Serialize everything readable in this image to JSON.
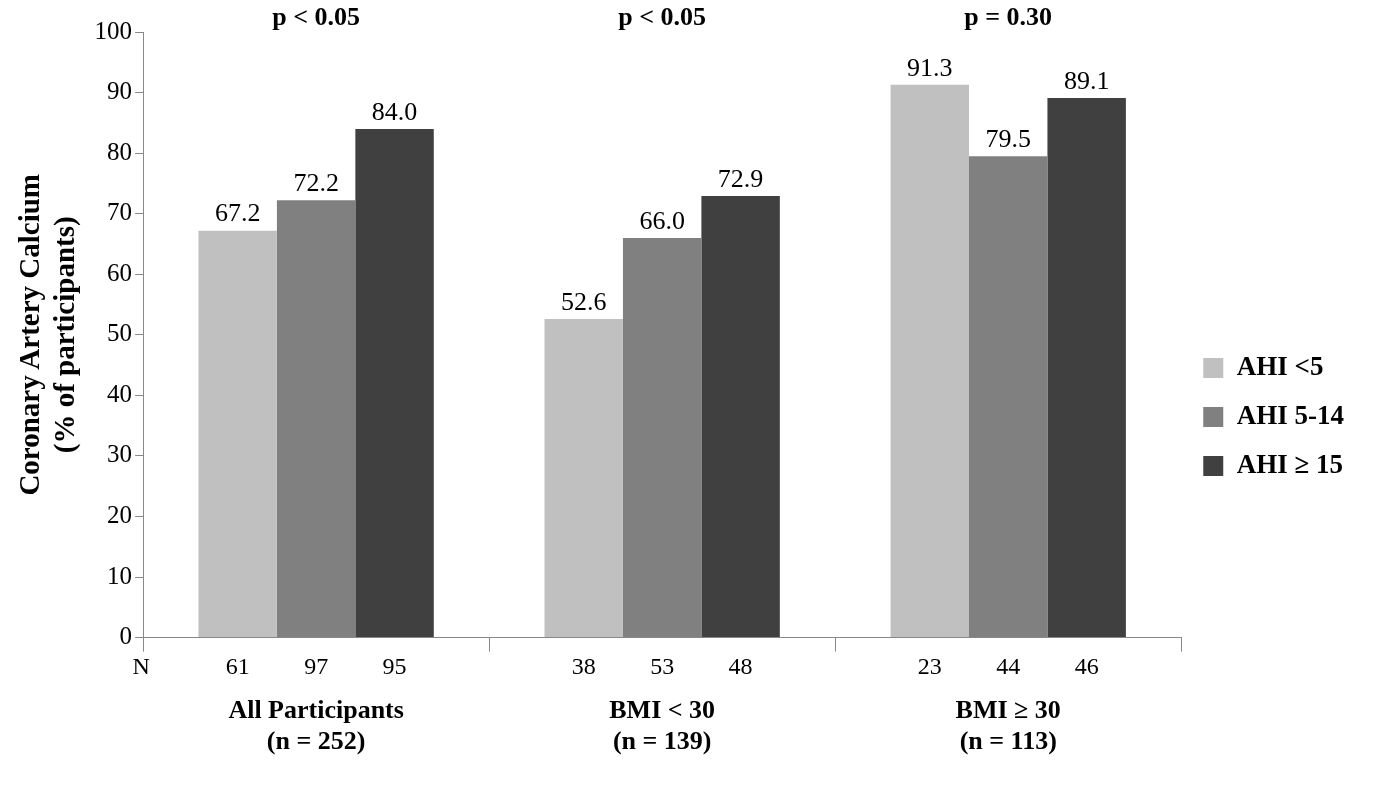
{
  "chart_data": {
    "type": "bar",
    "ylabel": "Coronary Artery Calcium\n(% of participants)",
    "categories": [
      "All Participants\n(n = 252)",
      "BMI < 30\n(n = 139)",
      "BMI ≥ 30\n(n = 113)"
    ],
    "series": [
      {
        "name": "AHI <5",
        "color": "#c0c0c0",
        "values": [
          67.2,
          52.6,
          91.3
        ],
        "value_labels": [
          "67.2",
          "52.6",
          "91.3"
        ]
      },
      {
        "name": "AHI 5-14",
        "color": "#808080",
        "values": [
          72.2,
          66.0,
          79.5
        ],
        "value_labels": [
          "72.2",
          "66.0",
          "79.5"
        ]
      },
      {
        "name": "AHI ≥ 15",
        "color": "#404040",
        "values": [
          84.0,
          72.9,
          89.1
        ],
        "value_labels": [
          "84.0",
          "72.9",
          "89.1"
        ]
      }
    ],
    "ylim": [
      0,
      100
    ],
    "yticks": [
      0,
      10,
      20,
      30,
      40,
      50,
      60,
      70,
      80,
      90,
      100
    ],
    "grid": false,
    "legend": "right",
    "annotations": [
      "p < 0.05",
      "p < 0.05",
      "p = 0.30",
      "N",
      "61",
      "97",
      "95",
      "38",
      "53",
      "48",
      "23",
      "44",
      "46"
    ]
  }
}
